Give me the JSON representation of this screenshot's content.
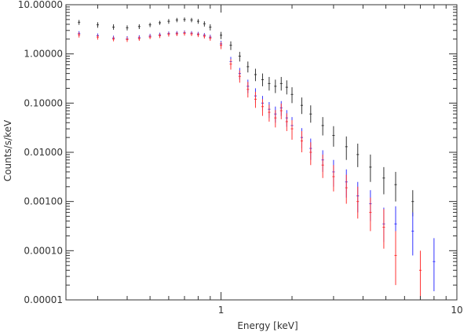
{
  "chart_data": {
    "type": "scatter",
    "title": "",
    "xlabel": "Energy [keV]",
    "ylabel": "Counts/s/keV",
    "x_scale": "log",
    "y_scale": "log",
    "xlim": [
      0.22,
      10
    ],
    "ylim": [
      1e-05,
      10
    ],
    "x_ticks": [
      {
        "value": 1,
        "label": "1"
      },
      {
        "value": 10,
        "label": "10"
      }
    ],
    "y_ticks": [
      {
        "value": 1e-05,
        "label": "0.00001"
      },
      {
        "value": 0.0001,
        "label": "0.00010"
      },
      {
        "value": 0.001,
        "label": "0.00100"
      },
      {
        "value": 0.01,
        "label": "0.01000"
      },
      {
        "value": 0.1,
        "label": "0.10000"
      },
      {
        "value": 1,
        "label": "1.00000"
      },
      {
        "value": 10,
        "label": "10.00000"
      }
    ],
    "grid": false,
    "legend": "none",
    "series": [
      {
        "color": "#333333",
        "points": [
          {
            "x": 0.25,
            "y": 4.4,
            "lo": 3.9,
            "hi": 4.9
          },
          {
            "x": 0.3,
            "y": 3.9,
            "lo": 3.4,
            "hi": 4.4
          },
          {
            "x": 0.35,
            "y": 3.5,
            "lo": 3.1,
            "hi": 4.0
          },
          {
            "x": 0.4,
            "y": 3.4,
            "lo": 3.0,
            "hi": 3.8
          },
          {
            "x": 0.45,
            "y": 3.6,
            "lo": 3.2,
            "hi": 4.0
          },
          {
            "x": 0.5,
            "y": 3.9,
            "lo": 3.5,
            "hi": 4.3
          },
          {
            "x": 0.55,
            "y": 4.3,
            "lo": 3.9,
            "hi": 4.7
          },
          {
            "x": 0.6,
            "y": 4.6,
            "lo": 4.1,
            "hi": 5.1
          },
          {
            "x": 0.65,
            "y": 4.9,
            "lo": 4.4,
            "hi": 5.4
          },
          {
            "x": 0.7,
            "y": 5.0,
            "lo": 4.5,
            "hi": 5.5
          },
          {
            "x": 0.75,
            "y": 4.9,
            "lo": 4.4,
            "hi": 5.4
          },
          {
            "x": 0.8,
            "y": 4.6,
            "lo": 4.1,
            "hi": 5.1
          },
          {
            "x": 0.85,
            "y": 4.1,
            "lo": 3.6,
            "hi": 4.6
          },
          {
            "x": 0.9,
            "y": 3.5,
            "lo": 3.0,
            "hi": 4.0
          },
          {
            "x": 1.0,
            "y": 2.4,
            "lo": 2.0,
            "hi": 2.8
          },
          {
            "x": 1.1,
            "y": 1.5,
            "lo": 1.2,
            "hi": 1.8
          },
          {
            "x": 1.2,
            "y": 0.9,
            "lo": 0.7,
            "hi": 1.1
          },
          {
            "x": 1.3,
            "y": 0.55,
            "lo": 0.42,
            "hi": 0.7
          },
          {
            "x": 1.4,
            "y": 0.38,
            "lo": 0.28,
            "hi": 0.5
          },
          {
            "x": 1.5,
            "y": 0.3,
            "lo": 0.22,
            "hi": 0.4
          },
          {
            "x": 1.6,
            "y": 0.25,
            "lo": 0.18,
            "hi": 0.34
          },
          {
            "x": 1.7,
            "y": 0.22,
            "lo": 0.16,
            "hi": 0.3
          },
          {
            "x": 1.8,
            "y": 0.25,
            "lo": 0.18,
            "hi": 0.34
          },
          {
            "x": 1.9,
            "y": 0.21,
            "lo": 0.15,
            "hi": 0.29
          },
          {
            "x": 2.0,
            "y": 0.15,
            "lo": 0.1,
            "hi": 0.21
          },
          {
            "x": 2.2,
            "y": 0.09,
            "lo": 0.06,
            "hi": 0.13
          },
          {
            "x": 2.4,
            "y": 0.06,
            "lo": 0.04,
            "hi": 0.09
          },
          {
            "x": 2.7,
            "y": 0.035,
            "lo": 0.022,
            "hi": 0.052
          },
          {
            "x": 3.0,
            "y": 0.022,
            "lo": 0.013,
            "hi": 0.034
          },
          {
            "x": 3.4,
            "y": 0.013,
            "lo": 0.007,
            "hi": 0.021
          },
          {
            "x": 3.8,
            "y": 0.009,
            "lo": 0.005,
            "hi": 0.015
          },
          {
            "x": 4.3,
            "y": 0.005,
            "lo": 0.0025,
            "hi": 0.009
          },
          {
            "x": 4.9,
            "y": 0.003,
            "lo": 0.0014,
            "hi": 0.005
          },
          {
            "x": 5.5,
            "y": 0.0022,
            "lo": 0.001,
            "hi": 0.004
          },
          {
            "x": 6.5,
            "y": 0.001,
            "lo": 0.0005,
            "hi": 0.0017
          }
        ]
      },
      {
        "color": "#3333ff",
        "points": [
          {
            "x": 0.25,
            "y": 2.6,
            "lo": 2.3,
            "hi": 2.9
          },
          {
            "x": 0.3,
            "y": 2.35,
            "lo": 2.1,
            "hi": 2.6
          },
          {
            "x": 0.35,
            "y": 2.1,
            "lo": 1.9,
            "hi": 2.35
          },
          {
            "x": 0.4,
            "y": 2.05,
            "lo": 1.85,
            "hi": 2.3
          },
          {
            "x": 0.45,
            "y": 2.15,
            "lo": 1.95,
            "hi": 2.4
          },
          {
            "x": 0.5,
            "y": 2.3,
            "lo": 2.1,
            "hi": 2.55
          },
          {
            "x": 0.55,
            "y": 2.45,
            "lo": 2.2,
            "hi": 2.7
          },
          {
            "x": 0.6,
            "y": 2.6,
            "lo": 2.35,
            "hi": 2.85
          },
          {
            "x": 0.65,
            "y": 2.65,
            "lo": 2.4,
            "hi": 2.9
          },
          {
            "x": 0.7,
            "y": 2.7,
            "lo": 2.45,
            "hi": 3.0
          },
          {
            "x": 0.75,
            "y": 2.65,
            "lo": 2.4,
            "hi": 2.9
          },
          {
            "x": 0.8,
            "y": 2.55,
            "lo": 2.3,
            "hi": 2.8
          },
          {
            "x": 0.85,
            "y": 2.4,
            "lo": 2.15,
            "hi": 2.65
          },
          {
            "x": 0.9,
            "y": 2.2,
            "lo": 1.95,
            "hi": 2.45
          },
          {
            "x": 1.0,
            "y": 1.6,
            "lo": 1.35,
            "hi": 1.85
          },
          {
            "x": 1.1,
            "y": 0.7,
            "lo": 0.55,
            "hi": 0.87
          },
          {
            "x": 1.2,
            "y": 0.4,
            "lo": 0.3,
            "hi": 0.52
          },
          {
            "x": 1.3,
            "y": 0.22,
            "lo": 0.16,
            "hi": 0.3
          },
          {
            "x": 1.4,
            "y": 0.14,
            "lo": 0.1,
            "hi": 0.2
          },
          {
            "x": 1.5,
            "y": 0.1,
            "lo": 0.07,
            "hi": 0.14
          },
          {
            "x": 1.6,
            "y": 0.075,
            "lo": 0.05,
            "hi": 0.105
          },
          {
            "x": 1.7,
            "y": 0.06,
            "lo": 0.04,
            "hi": 0.085
          },
          {
            "x": 1.8,
            "y": 0.08,
            "lo": 0.055,
            "hi": 0.11
          },
          {
            "x": 1.9,
            "y": 0.05,
            "lo": 0.033,
            "hi": 0.072
          },
          {
            "x": 2.0,
            "y": 0.035,
            "lo": 0.022,
            "hi": 0.052
          },
          {
            "x": 2.2,
            "y": 0.02,
            "lo": 0.012,
            "hi": 0.031
          },
          {
            "x": 2.4,
            "y": 0.012,
            "lo": 0.007,
            "hi": 0.019
          },
          {
            "x": 2.7,
            "y": 0.007,
            "lo": 0.004,
            "hi": 0.011
          },
          {
            "x": 3.0,
            "y": 0.004,
            "lo": 0.002,
            "hi": 0.007
          },
          {
            "x": 3.4,
            "y": 0.0025,
            "lo": 0.0012,
            "hi": 0.0045
          },
          {
            "x": 3.8,
            "y": 0.0013,
            "lo": 0.0006,
            "hi": 0.0025
          },
          {
            "x": 4.3,
            "y": 0.0009,
            "lo": 0.0004,
            "hi": 0.0017
          },
          {
            "x": 4.9,
            "y": 0.00035,
            "lo": 0.00015,
            "hi": 0.00075
          },
          {
            "x": 5.5,
            "y": 0.00035,
            "lo": 0.00013,
            "hi": 0.0008
          },
          {
            "x": 6.5,
            "y": 0.00025,
            "lo": 8e-05,
            "hi": 0.0006
          },
          {
            "x": 8.0,
            "y": 6e-05,
            "lo": 1.5e-05,
            "hi": 0.00018
          }
        ]
      },
      {
        "color": "#ff3333",
        "points": [
          {
            "x": 0.25,
            "y": 2.45,
            "lo": 2.15,
            "hi": 2.75
          },
          {
            "x": 0.3,
            "y": 2.2,
            "lo": 1.95,
            "hi": 2.45
          },
          {
            "x": 0.35,
            "y": 2.0,
            "lo": 1.8,
            "hi": 2.25
          },
          {
            "x": 0.4,
            "y": 1.95,
            "lo": 1.75,
            "hi": 2.2
          },
          {
            "x": 0.45,
            "y": 2.05,
            "lo": 1.85,
            "hi": 2.3
          },
          {
            "x": 0.5,
            "y": 2.2,
            "lo": 2.0,
            "hi": 2.45
          },
          {
            "x": 0.55,
            "y": 2.35,
            "lo": 2.1,
            "hi": 2.6
          },
          {
            "x": 0.6,
            "y": 2.5,
            "lo": 2.25,
            "hi": 2.75
          },
          {
            "x": 0.65,
            "y": 2.55,
            "lo": 2.3,
            "hi": 2.8
          },
          {
            "x": 0.7,
            "y": 2.6,
            "lo": 2.35,
            "hi": 2.9
          },
          {
            "x": 0.75,
            "y": 2.55,
            "lo": 2.3,
            "hi": 2.8
          },
          {
            "x": 0.8,
            "y": 2.45,
            "lo": 2.2,
            "hi": 2.7
          },
          {
            "x": 0.85,
            "y": 2.3,
            "lo": 2.05,
            "hi": 2.55
          },
          {
            "x": 0.9,
            "y": 2.1,
            "lo": 1.85,
            "hi": 2.35
          },
          {
            "x": 1.0,
            "y": 1.5,
            "lo": 1.25,
            "hi": 1.75
          },
          {
            "x": 1.1,
            "y": 0.62,
            "lo": 0.48,
            "hi": 0.78
          },
          {
            "x": 1.2,
            "y": 0.35,
            "lo": 0.26,
            "hi": 0.46
          },
          {
            "x": 1.3,
            "y": 0.19,
            "lo": 0.13,
            "hi": 0.27
          },
          {
            "x": 1.4,
            "y": 0.12,
            "lo": 0.08,
            "hi": 0.17
          },
          {
            "x": 1.5,
            "y": 0.085,
            "lo": 0.055,
            "hi": 0.12
          },
          {
            "x": 1.6,
            "y": 0.065,
            "lo": 0.042,
            "hi": 0.093
          },
          {
            "x": 1.7,
            "y": 0.05,
            "lo": 0.032,
            "hi": 0.072
          },
          {
            "x": 1.8,
            "y": 0.07,
            "lo": 0.047,
            "hi": 0.098
          },
          {
            "x": 1.9,
            "y": 0.042,
            "lo": 0.027,
            "hi": 0.062
          },
          {
            "x": 2.0,
            "y": 0.03,
            "lo": 0.018,
            "hi": 0.045
          },
          {
            "x": 2.2,
            "y": 0.017,
            "lo": 0.01,
            "hi": 0.027
          },
          {
            "x": 2.4,
            "y": 0.01,
            "lo": 0.0055,
            "hi": 0.016
          },
          {
            "x": 2.7,
            "y": 0.0055,
            "lo": 0.003,
            "hi": 0.009
          },
          {
            "x": 3.0,
            "y": 0.0032,
            "lo": 0.0016,
            "hi": 0.0055
          },
          {
            "x": 3.4,
            "y": 0.0019,
            "lo": 0.0009,
            "hi": 0.0035
          },
          {
            "x": 3.8,
            "y": 0.001,
            "lo": 0.00045,
            "hi": 0.002
          },
          {
            "x": 4.3,
            "y": 0.0006,
            "lo": 0.00025,
            "hi": 0.0012
          },
          {
            "x": 4.9,
            "y": 0.0003,
            "lo": 0.00011,
            "hi": 0.0007
          },
          {
            "x": 5.5,
            "y": 8e-05,
            "lo": 2e-05,
            "hi": 0.00025
          },
          {
            "x": 7.0,
            "y": 4e-05,
            "lo": 1e-05,
            "hi": 0.0001
          }
        ]
      }
    ]
  }
}
